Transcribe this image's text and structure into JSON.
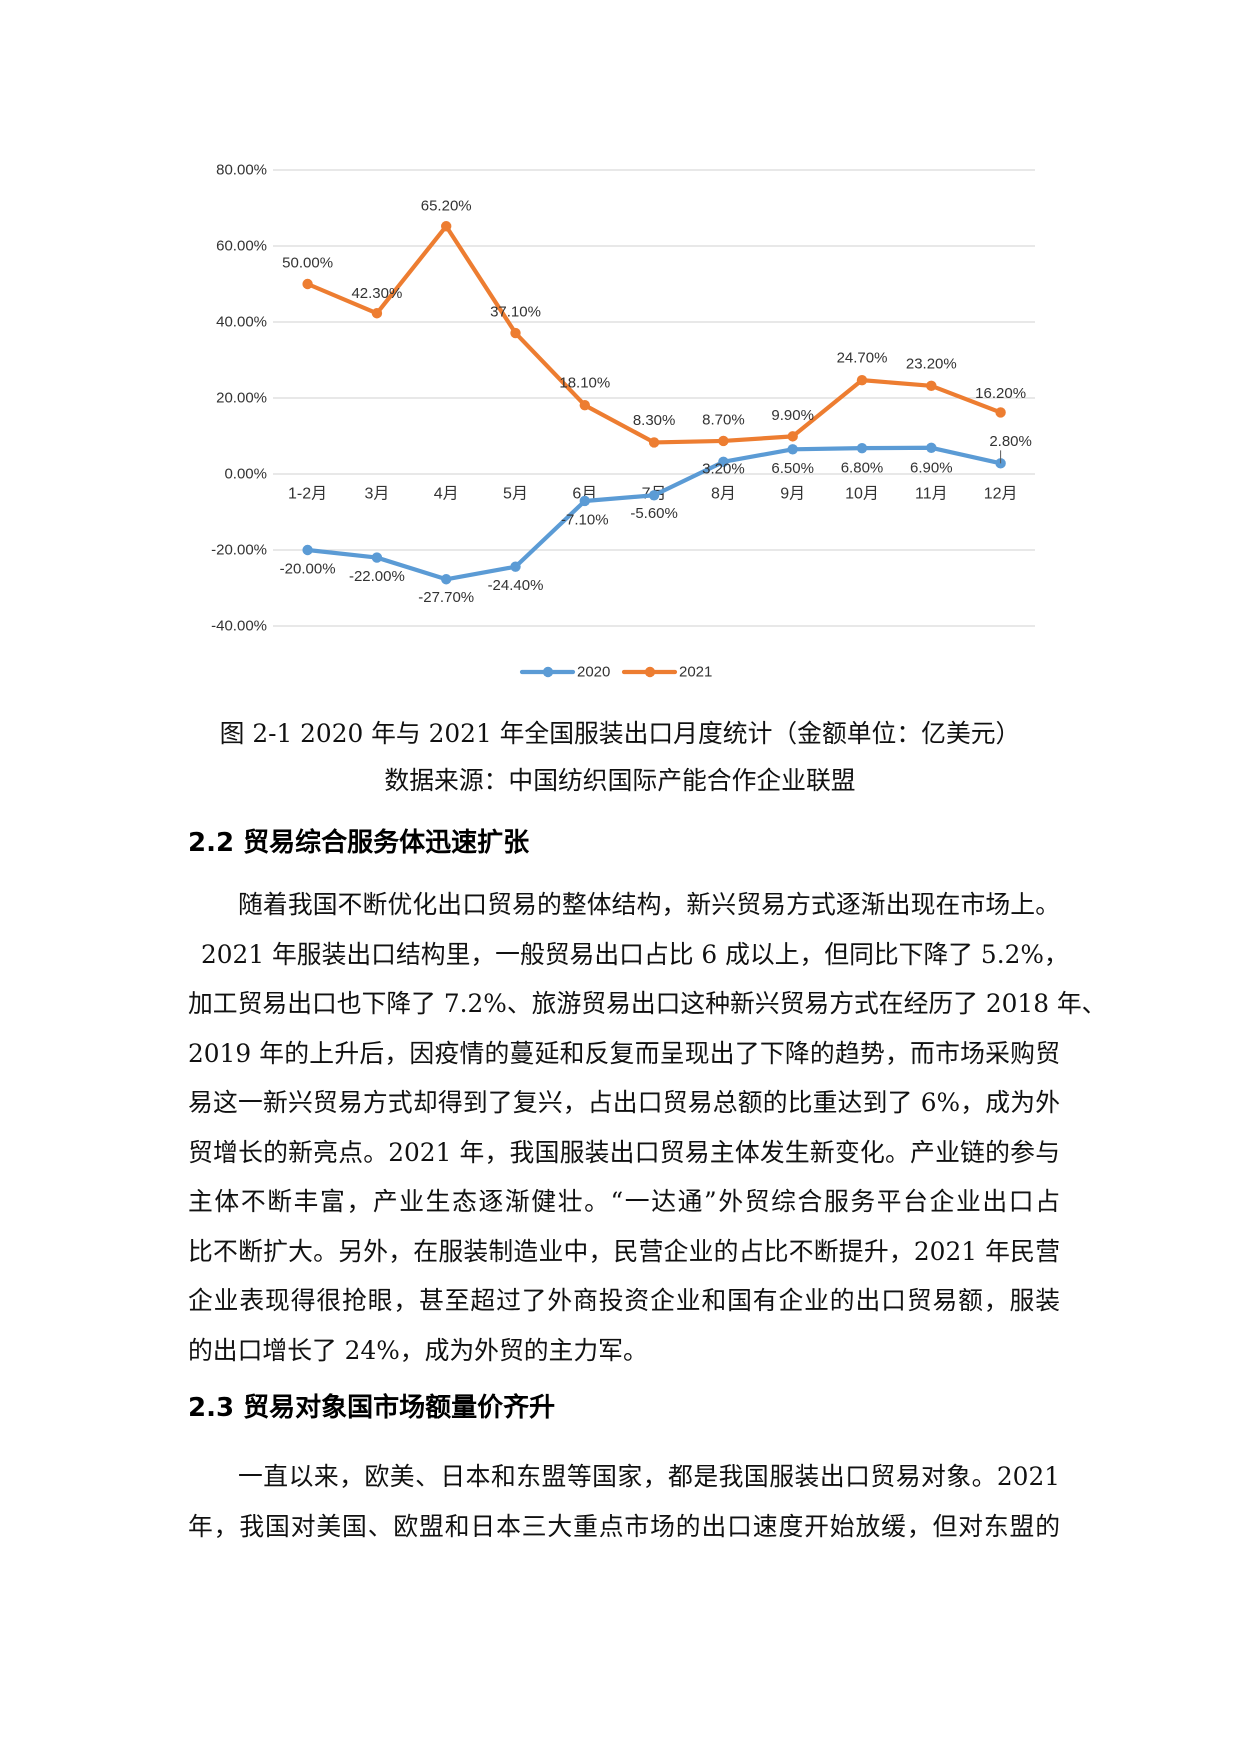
{
  "chart_data": {
    "type": "line",
    "title": "",
    "xlabel": "",
    "ylabel": "",
    "categories": [
      "1-2月",
      "3月",
      "4月",
      "5月",
      "6月",
      "7月",
      "8月",
      "9月",
      "10月",
      "11月",
      "12月"
    ],
    "series": [
      {
        "name": "2020",
        "color": "#5B9BD5",
        "values": [
          -20.0,
          -22.0,
          -27.7,
          -24.4,
          -7.1,
          -5.6,
          3.2,
          6.5,
          6.8,
          6.9,
          2.8
        ],
        "labels": [
          "-20.00%",
          "-22.00%",
          "-27.70%",
          "-24.40%",
          "-7.10%",
          "-5.60%",
          "3.20%",
          "6.50%",
          "6.80%",
          "6.90%",
          "2.80%"
        ]
      },
      {
        "name": "2021",
        "color": "#ED7D31",
        "values": [
          50.0,
          42.3,
          65.2,
          37.1,
          18.1,
          8.3,
          8.7,
          9.9,
          24.7,
          23.2,
          16.2
        ],
        "labels": [
          "50.00%",
          "42.30%",
          "65.20%",
          "37.10%",
          "18.10%",
          "8.30%",
          "8.70%",
          "9.90%",
          "24.70%",
          "23.20%",
          "16.20%"
        ]
      }
    ],
    "ylim": [
      -40,
      80
    ],
    "yticks": [
      80,
      60,
      40,
      20,
      0,
      -20,
      -40
    ],
    "ytick_labels": [
      "80.00%",
      "60.00%",
      "40.00%",
      "20.00%",
      "0.00%",
      "-20.00%",
      "-40.00%"
    ],
    "grid": true,
    "grid_color": "#D9D9D9",
    "legend_position": "bottom",
    "data_labels": true
  },
  "figure": {
    "caption": "图 2-1 2020 年与 2021 年全国服装出口月度统计（金额单位：亿美元）",
    "source": "数据来源：中国纺织国际产能合作企业联盟"
  },
  "sections": [
    {
      "heading": "2.2 贸易综合服务体迅速扩张",
      "lines": [
        "随着我国不断优化出口贸易的整体结构，新兴贸易方式逐渐出现在市场上。",
        "2021 年服装出口结构里，一般贸易出口占比 6 成以上，但同比下降了 5.2%，",
        "加工贸易出口也下降了 7.2%、旅游贸易出口这种新兴贸易方式在经历了 2018 年、",
        "2019 年的上升后，因疫情的蔓延和反复而呈现出了下降的趋势，而市场采购贸",
        "易这一新兴贸易方式却得到了复兴，占出口贸易总额的比重达到了 6%，成为外",
        "贸增长的新亮点。2021 年，我国服装出口贸易主体发生新变化。产业链的参与",
        "主体不断丰富，产业生态逐渐健壮。“一达通”外贸综合服务平台企业出口占",
        "比不断扩大。另外，在服装制造业中，民营企业的占比不断提升，2021 年民营",
        "企业表现得很抢眼，甚至超过了外商投资企业和国有企业的出口贸易额，服装",
        "的出口增长了 24%，成为外贸的主力军。"
      ]
    },
    {
      "heading": "2.3 贸易对象国市场额量价齐升",
      "lines": [
        "一直以来，欧美、日本和东盟等国家，都是我国服装出口贸易对象。2021",
        "年，我国对美国、欧盟和日本三大重点市场的出口速度开始放缓，但对东盟的"
      ]
    }
  ]
}
